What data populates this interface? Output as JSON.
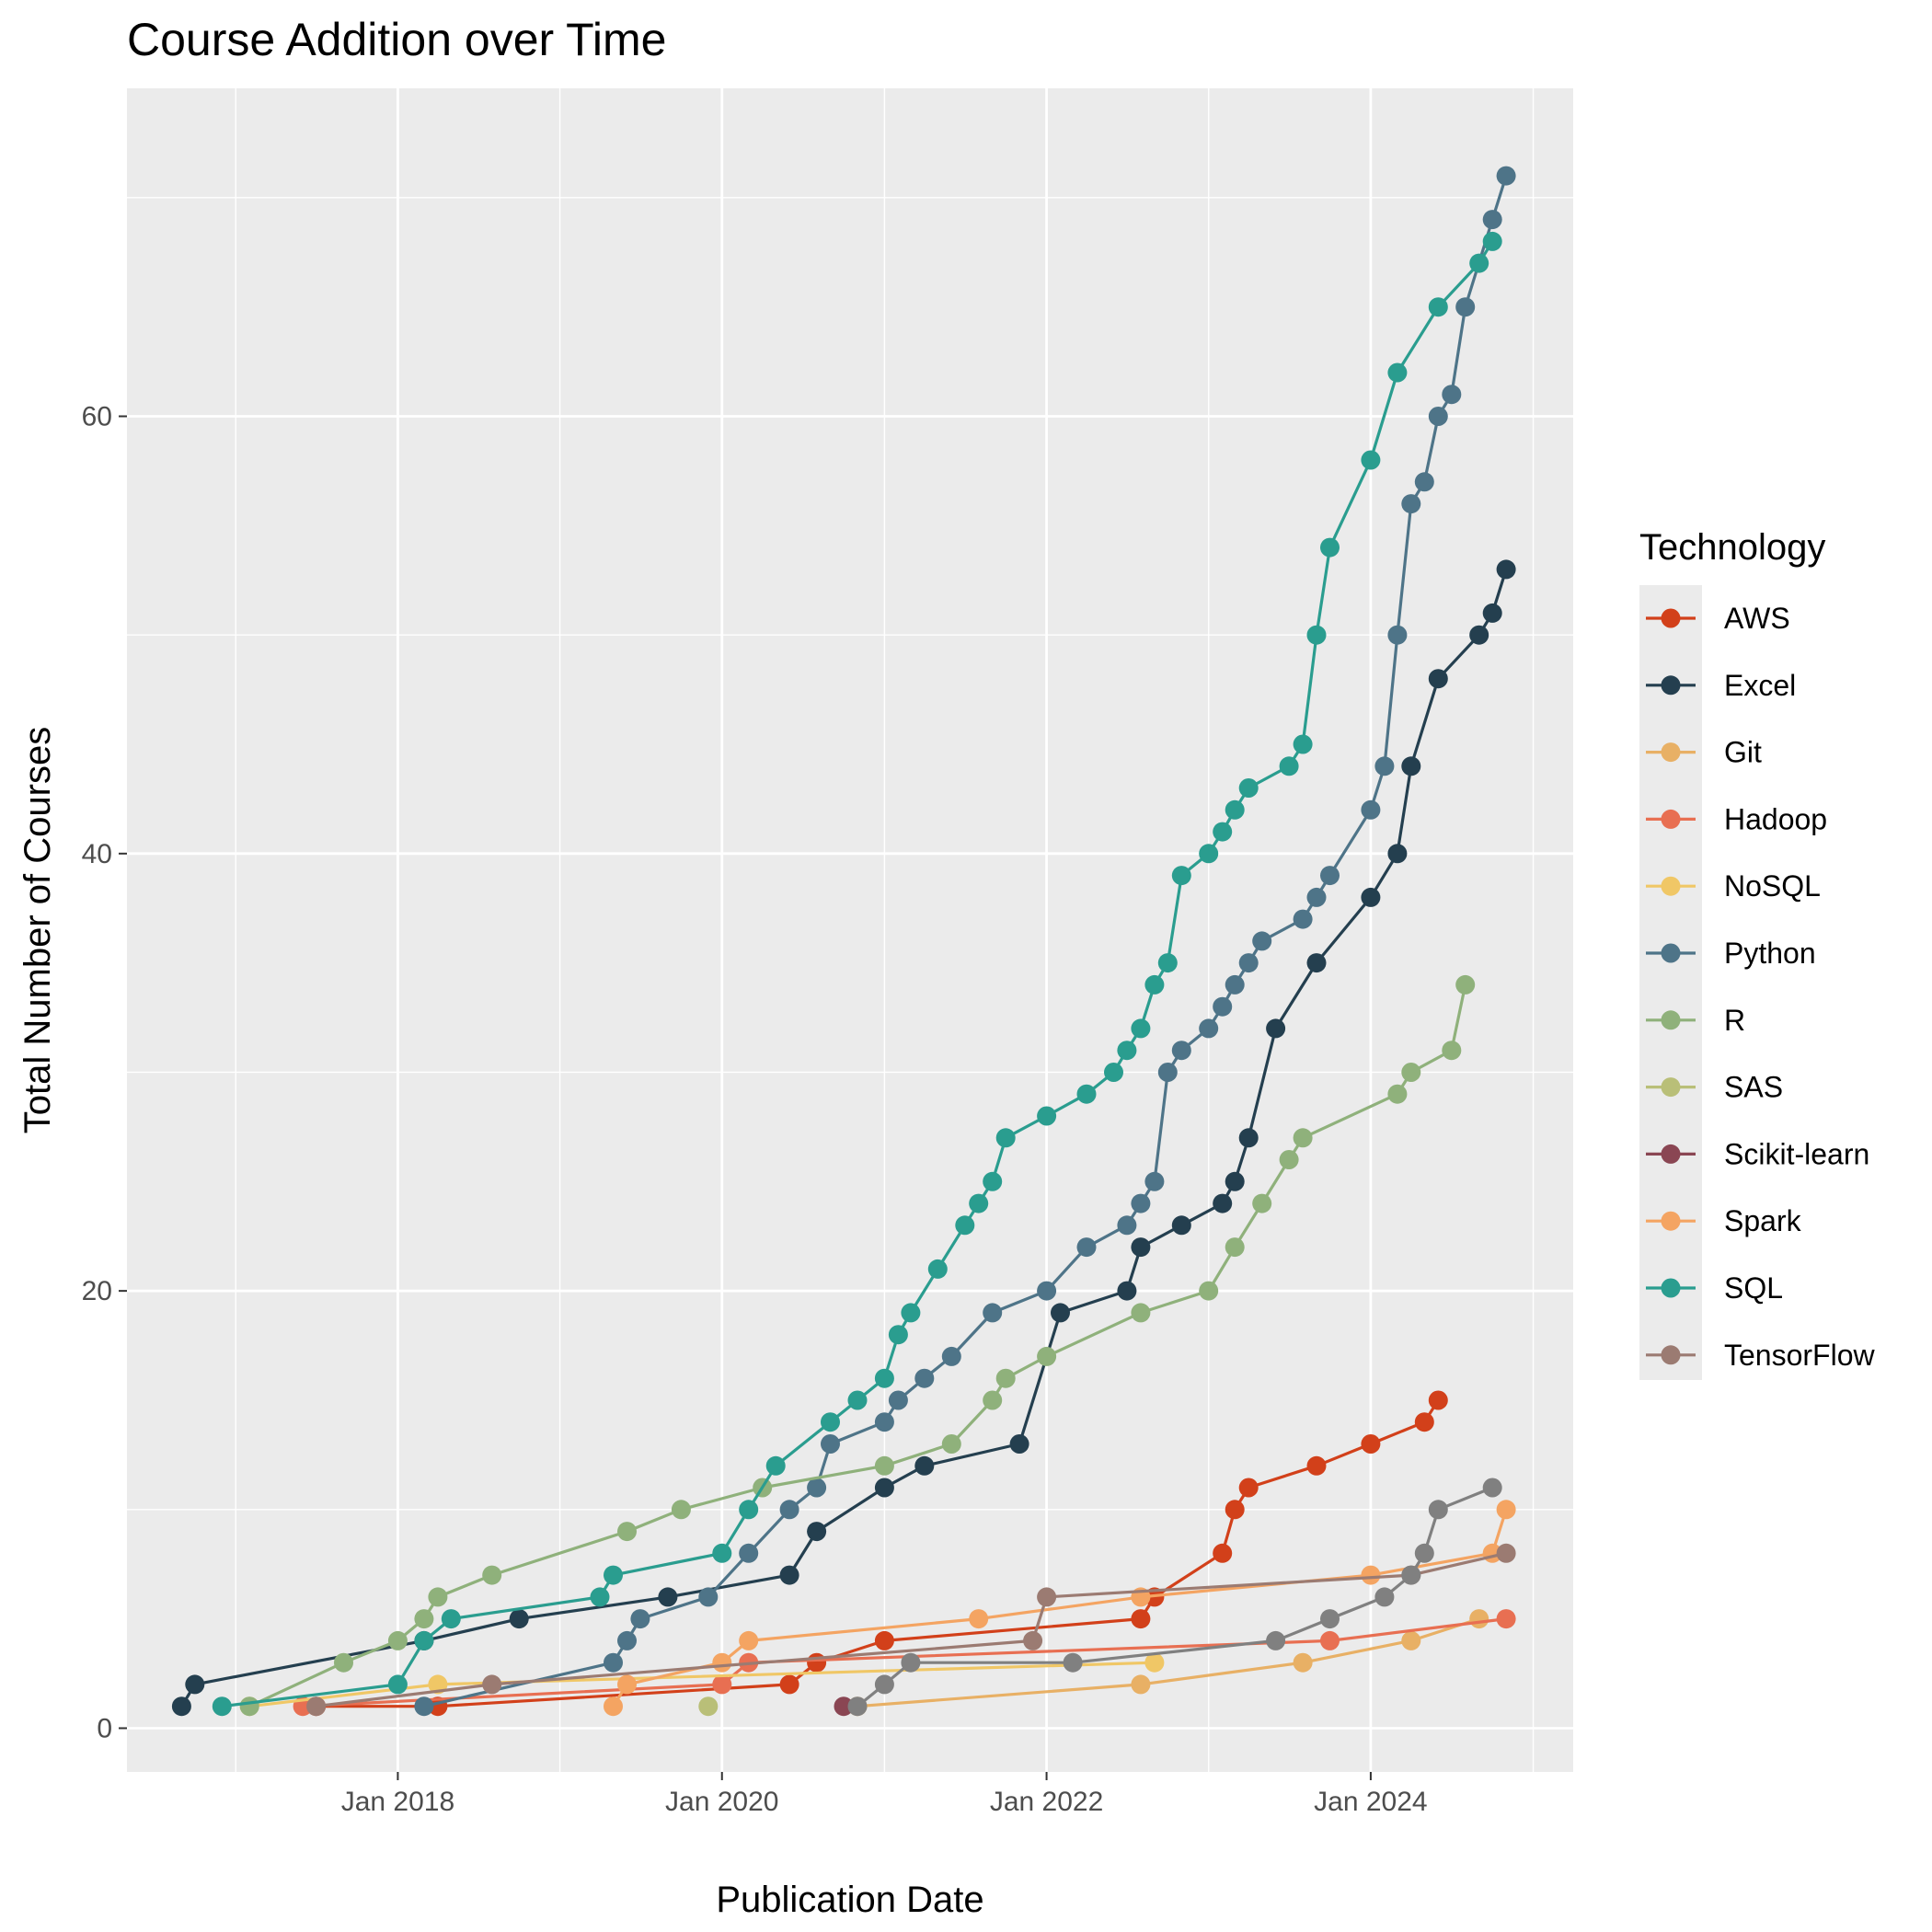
{
  "chart_data": {
    "type": "line",
    "title": "Course Addition over Time",
    "xlabel": "Publication Date",
    "ylabel": "Total Number of Courses",
    "x_type": "date",
    "xlim": [
      "2016-05-01",
      "2025-04-01"
    ],
    "ylim": [
      -2,
      75
    ],
    "x_ticks": [
      {
        "date": "2018-01-01",
        "label": "Jan 2018"
      },
      {
        "date": "2020-01-01",
        "label": "Jan 2020"
      },
      {
        "date": "2022-01-01",
        "label": "Jan 2022"
      },
      {
        "date": "2024-01-01",
        "label": "Jan 2024"
      }
    ],
    "y_ticks": [
      0,
      20,
      40,
      60
    ],
    "grid": true,
    "legend": {
      "title": "Technology",
      "position": "right"
    },
    "series": [
      {
        "name": "AWS",
        "color": "#d2401a",
        "points": [
          [
            "2017-07-01",
            1
          ],
          [
            "2018-04-01",
            1
          ],
          [
            "2020-06-01",
            2
          ],
          [
            "2020-08-01",
            3
          ],
          [
            "2021-01-01",
            4
          ],
          [
            "2022-08-01",
            5
          ],
          [
            "2022-09-01",
            6
          ],
          [
            "2023-02-01",
            8
          ],
          [
            "2023-03-01",
            10
          ],
          [
            "2023-04-01",
            11
          ],
          [
            "2023-09-01",
            12
          ],
          [
            "2024-01-01",
            13
          ],
          [
            "2024-05-01",
            14
          ],
          [
            "2024-06-01",
            15
          ]
        ]
      },
      {
        "name": "Excel",
        "color": "#243f4f",
        "points": [
          [
            "2016-09-01",
            1
          ],
          [
            "2016-10-01",
            2
          ],
          [
            "2018-03-01",
            4
          ],
          [
            "2018-10-01",
            5
          ],
          [
            "2019-09-01",
            6
          ],
          [
            "2020-06-01",
            7
          ],
          [
            "2020-08-01",
            9
          ],
          [
            "2021-01-01",
            11
          ],
          [
            "2021-04-01",
            12
          ],
          [
            "2021-11-01",
            13
          ],
          [
            "2022-02-01",
            19
          ],
          [
            "2022-07-01",
            20
          ],
          [
            "2022-08-01",
            22
          ],
          [
            "2022-11-01",
            23
          ],
          [
            "2023-02-01",
            24
          ],
          [
            "2023-03-01",
            25
          ],
          [
            "2023-04-01",
            27
          ],
          [
            "2023-06-01",
            32
          ],
          [
            "2023-09-01",
            35
          ],
          [
            "2024-01-01",
            38
          ],
          [
            "2024-03-01",
            40
          ],
          [
            "2024-04-01",
            44
          ],
          [
            "2024-06-01",
            48
          ],
          [
            "2024-09-01",
            50
          ],
          [
            "2024-10-01",
            51
          ],
          [
            "2024-11-01",
            53
          ]
        ]
      },
      {
        "name": "Git",
        "color": "#e8b065",
        "points": [
          [
            "2020-11-01",
            1
          ],
          [
            "2022-08-01",
            2
          ],
          [
            "2023-08-01",
            3
          ],
          [
            "2024-04-01",
            4
          ],
          [
            "2024-09-01",
            5
          ]
        ]
      },
      {
        "name": "Hadoop",
        "color": "#e86f52",
        "points": [
          [
            "2017-06-01",
            1
          ],
          [
            "2020-01-01",
            2
          ],
          [
            "2020-03-01",
            3
          ],
          [
            "2023-10-01",
            4
          ],
          [
            "2024-11-01",
            5
          ]
        ]
      },
      {
        "name": "NoSQL",
        "color": "#f0c766",
        "points": [
          [
            "2017-02-01",
            1
          ],
          [
            "2018-04-01",
            2
          ],
          [
            "2022-09-01",
            3
          ]
        ]
      },
      {
        "name": "Python",
        "color": "#4e7488",
        "points": [
          [
            "2018-03-01",
            1
          ],
          [
            "2019-05-01",
            3
          ],
          [
            "2019-06-01",
            4
          ],
          [
            "2019-07-01",
            5
          ],
          [
            "2019-12-01",
            6
          ],
          [
            "2020-03-01",
            8
          ],
          [
            "2020-06-01",
            10
          ],
          [
            "2020-08-01",
            11
          ],
          [
            "2020-09-01",
            13
          ],
          [
            "2021-01-01",
            14
          ],
          [
            "2021-02-01",
            15
          ],
          [
            "2021-04-01",
            16
          ],
          [
            "2021-06-01",
            17
          ],
          [
            "2021-09-01",
            19
          ],
          [
            "2022-01-01",
            20
          ],
          [
            "2022-04-01",
            22
          ],
          [
            "2022-07-01",
            23
          ],
          [
            "2022-08-01",
            24
          ],
          [
            "2022-09-01",
            25
          ],
          [
            "2022-10-01",
            30
          ],
          [
            "2022-11-01",
            31
          ],
          [
            "2023-01-01",
            32
          ],
          [
            "2023-02-01",
            33
          ],
          [
            "2023-03-01",
            34
          ],
          [
            "2023-04-01",
            35
          ],
          [
            "2023-05-01",
            36
          ],
          [
            "2023-08-01",
            37
          ],
          [
            "2023-09-01",
            38
          ],
          [
            "2023-10-01",
            39
          ],
          [
            "2024-01-01",
            42
          ],
          [
            "2024-02-01",
            44
          ],
          [
            "2024-03-01",
            50
          ],
          [
            "2024-04-01",
            56
          ],
          [
            "2024-05-01",
            57
          ],
          [
            "2024-06-01",
            60
          ],
          [
            "2024-07-01",
            61
          ],
          [
            "2024-08-01",
            65
          ],
          [
            "2024-10-01",
            69
          ],
          [
            "2024-11-01",
            71
          ]
        ]
      },
      {
        "name": "R",
        "color": "#8fb17b",
        "points": [
          [
            "2017-02-01",
            1
          ],
          [
            "2017-09-01",
            3
          ],
          [
            "2018-01-01",
            4
          ],
          [
            "2018-03-01",
            5
          ],
          [
            "2018-04-01",
            6
          ],
          [
            "2018-08-01",
            7
          ],
          [
            "2019-06-01",
            9
          ],
          [
            "2019-10-01",
            10
          ],
          [
            "2020-04-01",
            11
          ],
          [
            "2021-01-01",
            12
          ],
          [
            "2021-06-01",
            13
          ],
          [
            "2021-09-01",
            15
          ],
          [
            "2021-10-01",
            16
          ],
          [
            "2022-01-01",
            17
          ],
          [
            "2022-08-01",
            19
          ],
          [
            "2023-01-01",
            20
          ],
          [
            "2023-03-01",
            22
          ],
          [
            "2023-05-01",
            24
          ],
          [
            "2023-07-01",
            26
          ],
          [
            "2023-08-01",
            27
          ],
          [
            "2024-03-01",
            29
          ],
          [
            "2024-04-01",
            30
          ],
          [
            "2024-07-01",
            31
          ],
          [
            "2024-08-01",
            34
          ]
        ]
      },
      {
        "name": "SAS",
        "color": "#b9bf78",
        "points": [
          [
            "2019-12-01",
            1
          ]
        ]
      },
      {
        "name": "Scikit-learn",
        "color": "#8a4653",
        "points": [
          [
            "2020-10-01",
            1
          ]
        ]
      },
      {
        "name": "Spark",
        "color": "#f4a462",
        "points": [
          [
            "2019-05-01",
            1
          ],
          [
            "2019-06-01",
            2
          ],
          [
            "2020-01-01",
            3
          ],
          [
            "2020-03-01",
            4
          ],
          [
            "2021-08-01",
            5
          ],
          [
            "2022-08-01",
            6
          ],
          [
            "2024-01-01",
            7
          ],
          [
            "2024-10-01",
            8
          ],
          [
            "2024-11-01",
            10
          ]
        ]
      },
      {
        "name": "SQL",
        "color": "#2a9d8f",
        "points": [
          [
            "2016-12-01",
            1
          ],
          [
            "2018-01-01",
            2
          ],
          [
            "2018-03-01",
            4
          ],
          [
            "2018-05-01",
            5
          ],
          [
            "2019-04-01",
            6
          ],
          [
            "2019-05-01",
            7
          ],
          [
            "2020-01-01",
            8
          ],
          [
            "2020-03-01",
            10
          ],
          [
            "2020-05-01",
            12
          ],
          [
            "2020-09-01",
            14
          ],
          [
            "2020-11-01",
            15
          ],
          [
            "2021-01-01",
            16
          ],
          [
            "2021-02-01",
            18
          ],
          [
            "2021-03-01",
            19
          ],
          [
            "2021-05-01",
            21
          ],
          [
            "2021-07-01",
            23
          ],
          [
            "2021-08-01",
            24
          ],
          [
            "2021-09-01",
            25
          ],
          [
            "2021-10-01",
            27
          ],
          [
            "2022-01-01",
            28
          ],
          [
            "2022-04-01",
            29
          ],
          [
            "2022-06-01",
            30
          ],
          [
            "2022-07-01",
            31
          ],
          [
            "2022-08-01",
            32
          ],
          [
            "2022-09-01",
            34
          ],
          [
            "2022-10-01",
            35
          ],
          [
            "2022-11-01",
            39
          ],
          [
            "2023-01-01",
            40
          ],
          [
            "2023-02-01",
            41
          ],
          [
            "2023-03-01",
            42
          ],
          [
            "2023-04-01",
            43
          ],
          [
            "2023-07-01",
            44
          ],
          [
            "2023-08-01",
            45
          ],
          [
            "2023-09-01",
            50
          ],
          [
            "2023-10-01",
            54
          ],
          [
            "2024-01-01",
            58
          ],
          [
            "2024-03-01",
            62
          ],
          [
            "2024-06-01",
            65
          ],
          [
            "2024-09-01",
            67
          ],
          [
            "2024-10-01",
            68
          ]
        ]
      },
      {
        "name": "TensorFlow",
        "color": "#9b7b72",
        "points": [
          [
            "2017-07-01",
            1
          ],
          [
            "2018-08-01",
            2
          ],
          [
            "2021-12-01",
            4
          ],
          [
            "2022-01-01",
            6
          ],
          [
            "2024-04-01",
            7
          ],
          [
            "2024-11-01",
            8
          ]
        ]
      }
    ],
    "extra_series_unlabeled": [
      {
        "color": "#808080",
        "points": [
          [
            "2020-11-01",
            1
          ],
          [
            "2021-01-01",
            2
          ],
          [
            "2021-03-01",
            3
          ],
          [
            "2022-03-01",
            3
          ],
          [
            "2023-06-01",
            4
          ],
          [
            "2023-10-01",
            5
          ],
          [
            "2024-02-01",
            6
          ],
          [
            "2024-04-01",
            7
          ],
          [
            "2024-05-01",
            8
          ],
          [
            "2024-06-01",
            10
          ],
          [
            "2024-10-01",
            11
          ]
        ]
      }
    ]
  }
}
